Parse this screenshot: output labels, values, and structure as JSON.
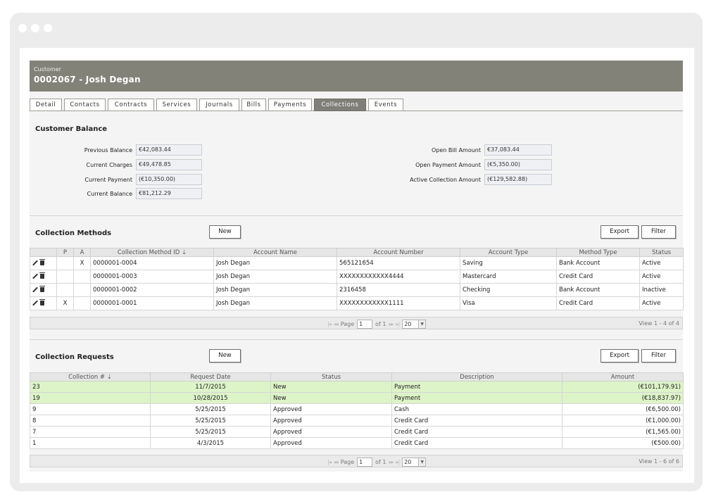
{
  "customer": {
    "label": "Customer",
    "title": "0002067 - Josh Degan"
  },
  "tabs": [
    "Detail",
    "Contacts",
    "Contracts",
    "Services",
    "Journals",
    "Bills",
    "Payments",
    "Collections",
    "Events"
  ],
  "active_tab": "Collections",
  "balance": {
    "title": "Customer Balance",
    "left": [
      {
        "label": "Previous Balance",
        "value": "€42,083.44"
      },
      {
        "label": "Current Charges",
        "value": "€49,478.85"
      },
      {
        "label": "Current Payment",
        "value": "(€10,350.00)"
      },
      {
        "label": "Current Balance",
        "value": "€81,212.29"
      }
    ],
    "right": [
      {
        "label": "Open Bill Amount",
        "value": "€37,083.44"
      },
      {
        "label": "Open Payment Amount",
        "value": "(€5,350.00)"
      },
      {
        "label": "Active Collection Amount",
        "value": "(€129,582.88)"
      }
    ]
  },
  "methods": {
    "title": "Collection Methods",
    "new_label": "New",
    "export_label": "Export",
    "filter_label": "Filter",
    "columns": [
      "",
      "P",
      "A",
      "Collection Method ID ⇣",
      "Account Name",
      "Account Number",
      "Account Type",
      "Method Type",
      "Status"
    ],
    "rows": [
      {
        "p": "",
        "a": "X",
        "id": "0000001-0004",
        "name": "Josh Degan",
        "number": "565121654",
        "acct_type": "Saving",
        "method": "Bank Account",
        "status": "Active"
      },
      {
        "p": "",
        "a": "",
        "id": "0000001-0003",
        "name": "Josh Degan",
        "number": "XXXXXXXXXXXX4444",
        "acct_type": "Mastercard",
        "method": "Credit Card",
        "status": "Active"
      },
      {
        "p": "",
        "a": "",
        "id": "0000001-0002",
        "name": "Josh Degan",
        "number": "2316458",
        "acct_type": "Checking",
        "method": "Bank Account",
        "status": "Inactive"
      },
      {
        "p": "X",
        "a": "",
        "id": "0000001-0001",
        "name": "Josh Degan",
        "number": "XXXXXXXXXXXX1111",
        "acct_type": "Visa",
        "method": "Credit Card",
        "status": "Active"
      }
    ],
    "pager": {
      "page_label": "Page",
      "page": "1",
      "of_label": "of 1",
      "size": "20",
      "view": "View 1 - 4 of 4"
    }
  },
  "requests": {
    "title": "Collection Requests",
    "new_label": "New",
    "export_label": "Export",
    "filter_label": "Filter",
    "columns": [
      "Collection # ⇣",
      "Request Date",
      "Status",
      "Description",
      "Amount"
    ],
    "rows": [
      {
        "num": "23",
        "date": "11/7/2015",
        "status": "New",
        "desc": "Payment",
        "amount": "(€101,179.91)",
        "highlight": true
      },
      {
        "num": "19",
        "date": "10/28/2015",
        "status": "New",
        "desc": "Payment",
        "amount": "(€18,837.97)",
        "highlight": true
      },
      {
        "num": "9",
        "date": "5/25/2015",
        "status": "Approved",
        "desc": "Cash",
        "amount": "(€6,500.00)",
        "highlight": false
      },
      {
        "num": "8",
        "date": "5/25/2015",
        "status": "Approved",
        "desc": "Credit Card",
        "amount": "(€1,000.00)",
        "highlight": false
      },
      {
        "num": "7",
        "date": "5/25/2015",
        "status": "Approved",
        "desc": "Credit Card",
        "amount": "(€1,565.00)",
        "highlight": false
      },
      {
        "num": "1",
        "date": "4/3/2015",
        "status": "Approved",
        "desc": "Credit Card",
        "amount": "(€500.00)",
        "highlight": false
      }
    ],
    "pager": {
      "page_label": "Page",
      "page": "1",
      "of_label": "of 1",
      "size": "20",
      "view": "View 1 - 6 of 6"
    }
  },
  "colors": {
    "header_bg": "#828279",
    "active_tab_bg": "#7f7f78",
    "row_highlight": "#ddf3c8"
  },
  "icons": {
    "edit": "pencil-icon",
    "delete": "trash-icon",
    "window_controls": "traffic-dots"
  }
}
